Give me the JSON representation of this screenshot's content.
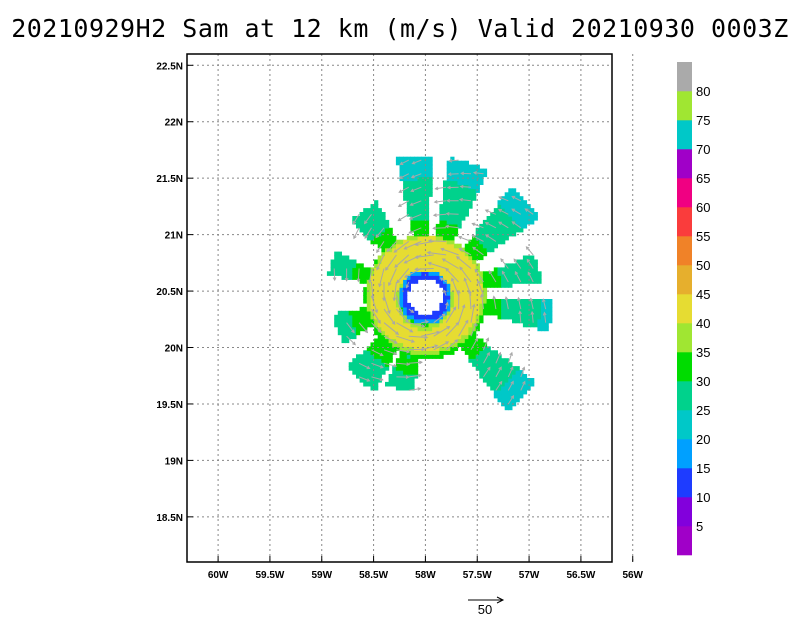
{
  "title": "20210929H2 Sam at 12 km (m/s) Valid 20210930 0003Z",
  "chart_data": {
    "type": "heatmap",
    "title": "20210929H2 Sam at 12 km (m/s) Valid 20210930 0003Z",
    "xlim": [
      -60.3,
      -56.2
    ],
    "ylim": [
      18.1,
      22.6
    ],
    "grid": true,
    "x_ticks": [
      {
        "value": -60,
        "label": "60W"
      },
      {
        "value": -59.5,
        "label": "59.5W"
      },
      {
        "value": -59,
        "label": "59W"
      },
      {
        "value": -58.5,
        "label": "58.5W"
      },
      {
        "value": -58,
        "label": "58W"
      },
      {
        "value": -57.5,
        "label": "57.5W"
      },
      {
        "value": -57,
        "label": "57W"
      },
      {
        "value": -56.5,
        "label": "56.5W"
      },
      {
        "value": -56,
        "label": "56W"
      }
    ],
    "y_ticks": [
      {
        "value": 18.5,
        "label": "18.5N"
      },
      {
        "value": 19,
        "label": "19N"
      },
      {
        "value": 19.5,
        "label": "19.5N"
      },
      {
        "value": 20,
        "label": "20N"
      },
      {
        "value": 20.5,
        "label": "20.5N"
      },
      {
        "value": 21,
        "label": "21N"
      },
      {
        "value": 21.5,
        "label": "21.5N"
      },
      {
        "value": 22,
        "label": "22N"
      },
      {
        "value": 22.5,
        "label": "22.5N"
      }
    ],
    "storm_center": {
      "lon": -58.0,
      "lat": 20.45
    },
    "colorbar": {
      "bins": [
        {
          "min": 0,
          "max": 5,
          "color": "#a000c8"
        },
        {
          "min": 5,
          "max": 10,
          "color": "#8200dc"
        },
        {
          "min": 10,
          "max": 15,
          "color": "#1e3cff"
        },
        {
          "min": 15,
          "max": 20,
          "color": "#00a0ff"
        },
        {
          "min": 20,
          "max": 25,
          "color": "#00c8c8"
        },
        {
          "min": 25,
          "max": 30,
          "color": "#00d28c"
        },
        {
          "min": 30,
          "max": 35,
          "color": "#00dc00"
        },
        {
          "min": 35,
          "max": 40,
          "color": "#a0e632"
        },
        {
          "min": 40,
          "max": 45,
          "color": "#e6dc32"
        },
        {
          "min": 45,
          "max": 50,
          "color": "#e6af2d"
        },
        {
          "min": 50,
          "max": 55,
          "color": "#f08228"
        },
        {
          "min": 55,
          "max": 60,
          "color": "#fa3c3c"
        },
        {
          "min": 60,
          "max": 65,
          "color": "#f00082"
        },
        {
          "min": 65,
          "max": 70,
          "color": "#a000c8"
        },
        {
          "min": 70,
          "max": 75,
          "color": "#00c8c8"
        },
        {
          "min": 75,
          "max": 80,
          "color": "#a0e632"
        },
        {
          "min": 80,
          "max": 85,
          "color": "#aaaaaa"
        }
      ],
      "labels": [
        "5",
        "10",
        "15",
        "20",
        "25",
        "30",
        "35",
        "40",
        "45",
        "50",
        "55",
        "60",
        "65",
        "70",
        "75",
        "80"
      ]
    },
    "reference_vector": {
      "value": 50,
      "label": "50"
    },
    "colors": {
      "grid": "#888888",
      "arrow": "#a8a8a8"
    }
  }
}
